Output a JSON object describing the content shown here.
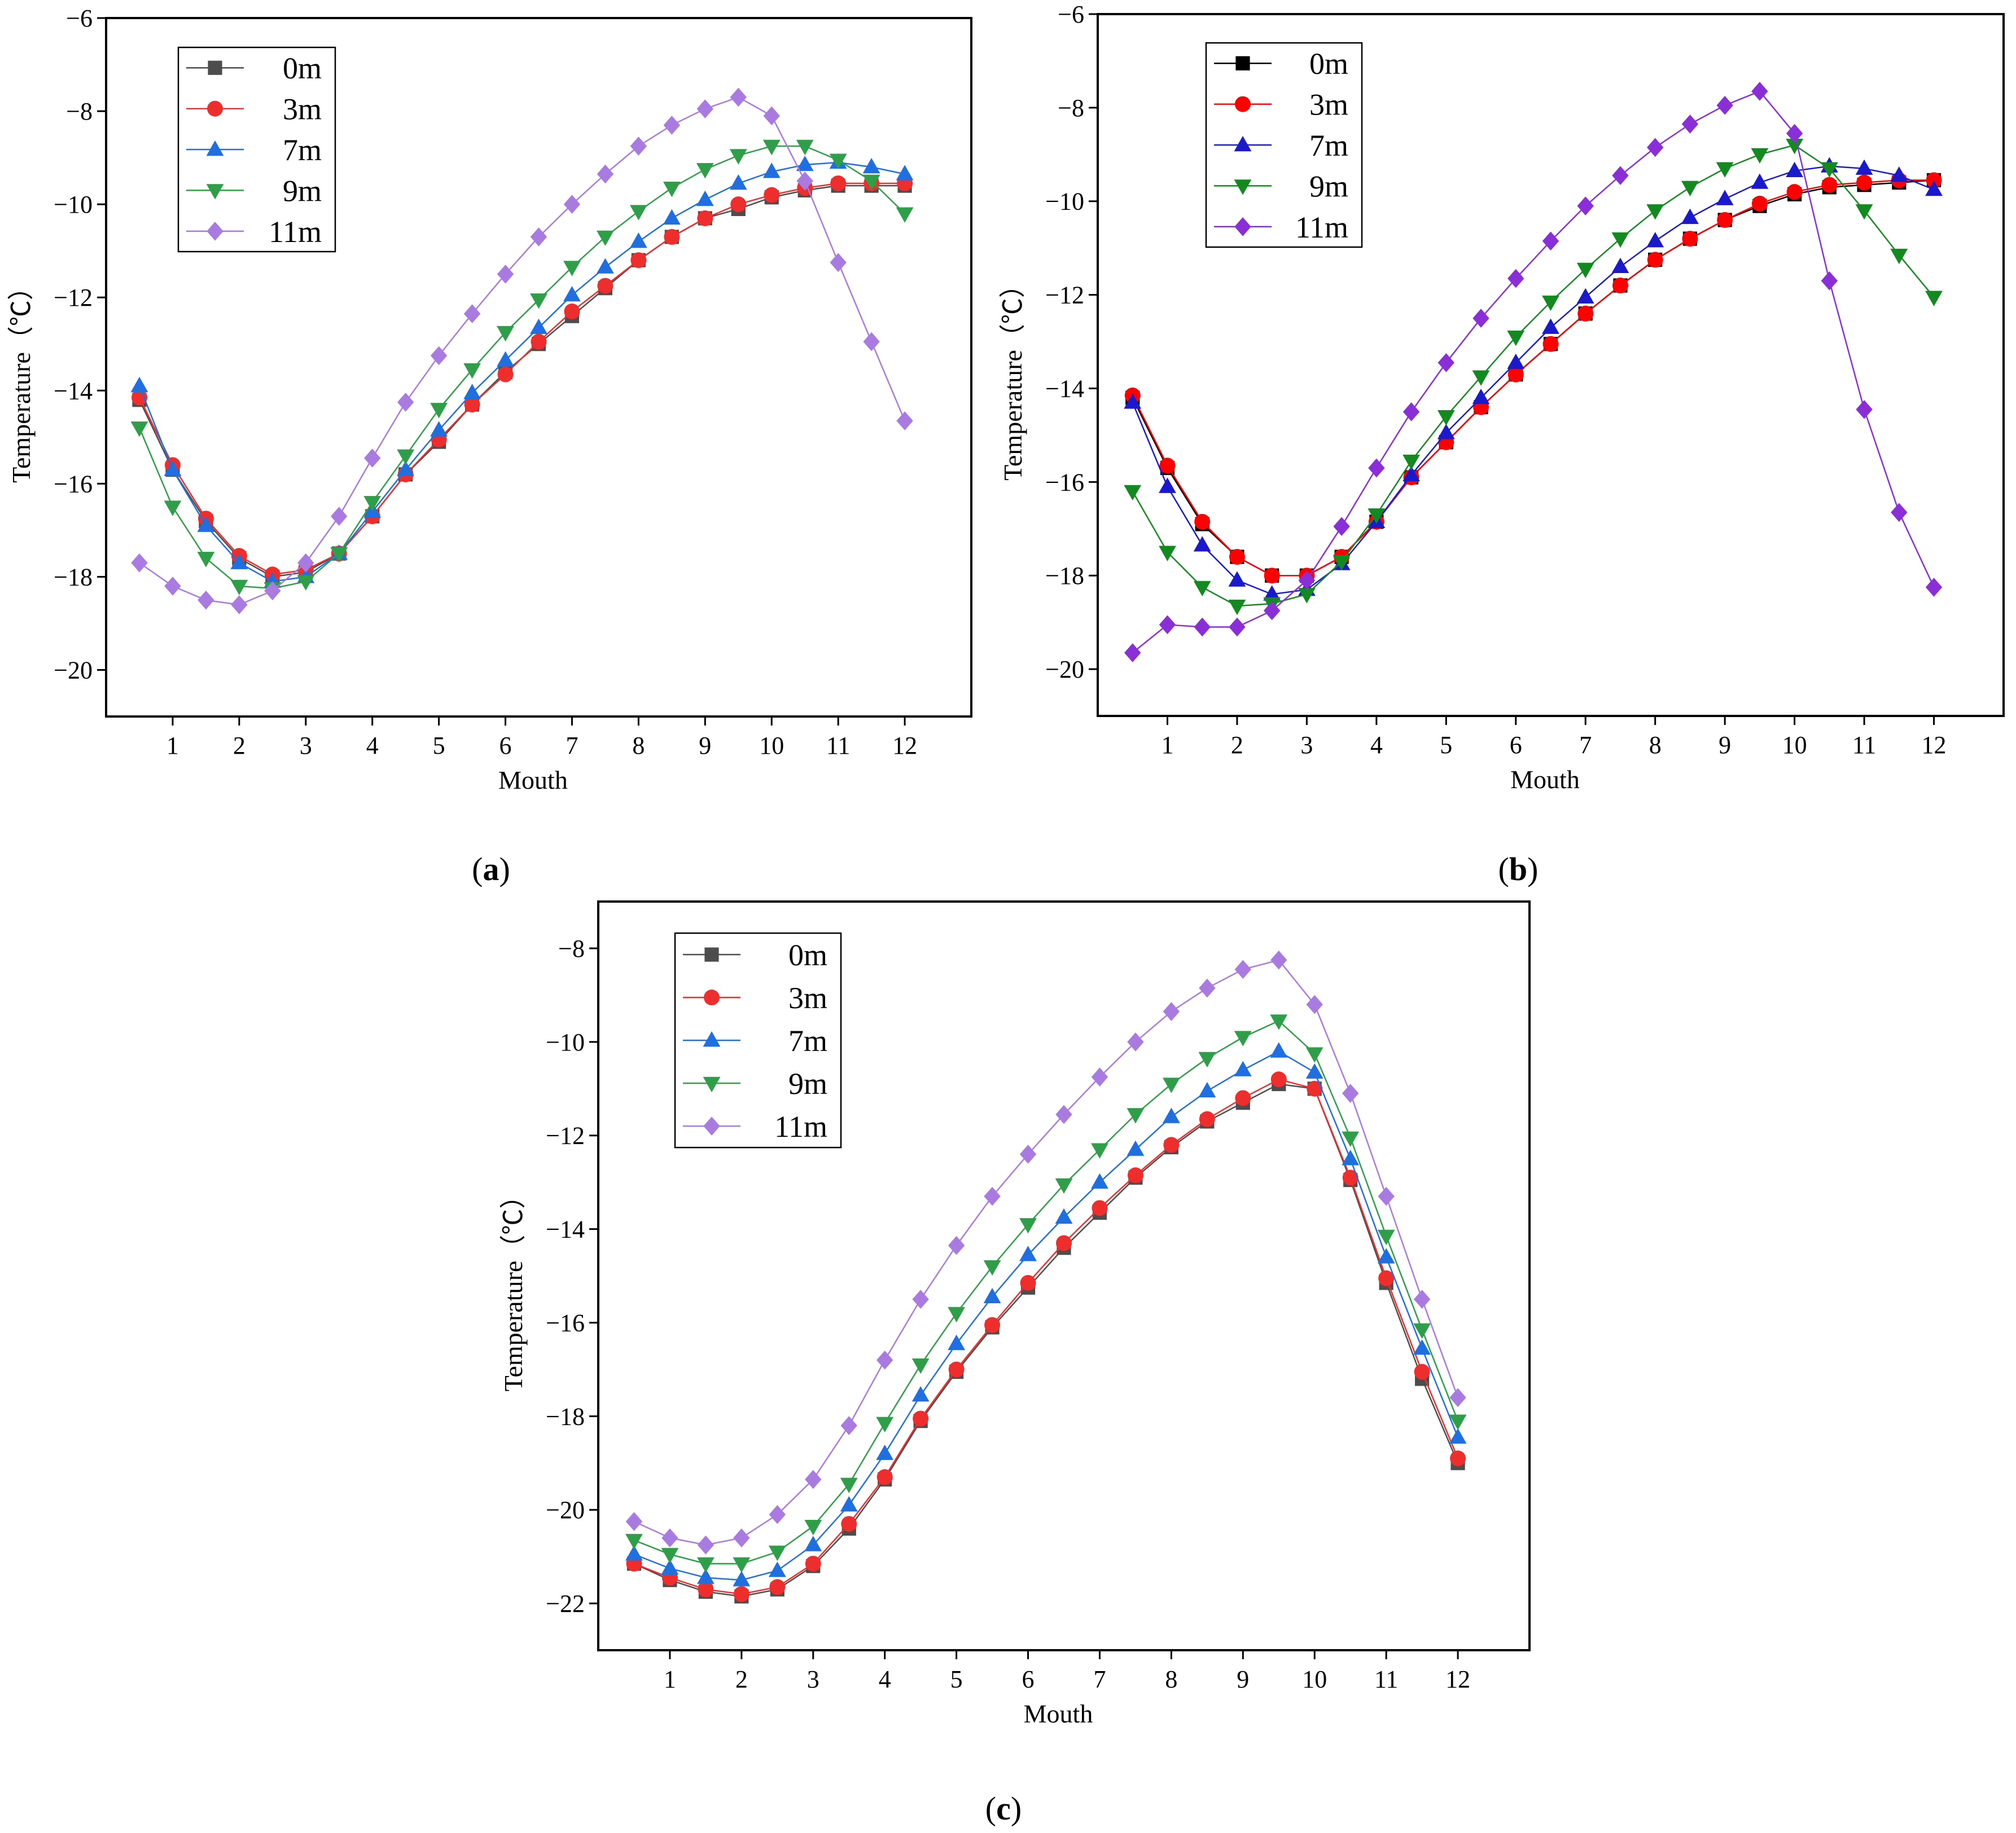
{
  "chart_data": [
    {
      "type": "line",
      "panel_label": "(a)",
      "panel_letter": "a",
      "xlabel": "Mouth",
      "ylabel": "Temperature（℃）",
      "xlim": [
        0,
        13
      ],
      "ylim": [
        -21,
        -6
      ],
      "xticks": [
        1,
        2,
        3,
        4,
        5,
        6,
        7,
        8,
        9,
        10,
        11,
        12
      ],
      "yticks": [
        -20,
        -18,
        -16,
        -14,
        -12,
        -10,
        -8,
        -6
      ],
      "x": [
        0.5,
        1,
        1.5,
        2,
        2.5,
        3,
        3.5,
        4,
        4.5,
        5,
        5.5,
        6,
        6.5,
        7,
        7.5,
        8,
        8.5,
        9,
        9.5,
        10,
        10.5,
        11,
        11.5,
        12
      ],
      "legend_position": "top-left",
      "series": [
        {
          "name": "0m",
          "marker": "square",
          "color": "#4d4d4d",
          "values": [
            -14.2,
            -15.7,
            -16.8,
            -17.6,
            -18.0,
            -17.9,
            -17.5,
            -16.7,
            -15.8,
            -15.1,
            -14.3,
            -13.6,
            -13.0,
            -12.4,
            -11.8,
            -11.2,
            -10.7,
            -10.3,
            -10.1,
            -9.85,
            -9.7,
            -9.6,
            -9.6,
            -9.6
          ]
        },
        {
          "name": "3m",
          "marker": "circle",
          "color": "#ee2d2d",
          "values": [
            -14.15,
            -15.6,
            -16.75,
            -17.55,
            -17.95,
            -17.85,
            -17.5,
            -16.7,
            -15.8,
            -15.05,
            -14.3,
            -13.65,
            -12.95,
            -12.3,
            -11.75,
            -11.2,
            -10.7,
            -10.3,
            -10.0,
            -9.8,
            -9.65,
            -9.55,
            -9.55,
            -9.55
          ]
        },
        {
          "name": "7m",
          "marker": "triangle-up",
          "color": "#1f6fe0",
          "values": [
            -13.9,
            -15.7,
            -16.9,
            -17.7,
            -18.1,
            -18.0,
            -17.5,
            -16.6,
            -15.7,
            -14.85,
            -14.05,
            -13.35,
            -12.65,
            -11.95,
            -11.35,
            -10.8,
            -10.3,
            -9.9,
            -9.55,
            -9.3,
            -9.15,
            -9.1,
            -9.2,
            -9.35
          ]
        },
        {
          "name": "9m",
          "marker": "triangle-down",
          "color": "#2e9e48",
          "values": [
            -14.8,
            -16.5,
            -17.6,
            -18.2,
            -18.25,
            -18.1,
            -17.5,
            -16.4,
            -15.4,
            -14.4,
            -13.55,
            -12.75,
            -12.05,
            -11.35,
            -10.7,
            -10.15,
            -9.65,
            -9.25,
            -8.95,
            -8.75,
            -8.75,
            -9.05,
            -9.5,
            -10.2
          ]
        },
        {
          "name": "11m",
          "marker": "diamond",
          "color": "#a97be0",
          "values": [
            -17.7,
            -18.2,
            -18.5,
            -18.6,
            -18.3,
            -17.7,
            -16.7,
            -15.45,
            -14.25,
            -13.25,
            -12.35,
            -11.5,
            -10.7,
            -10.0,
            -9.35,
            -8.75,
            -8.3,
            -7.95,
            -7.7,
            -8.1,
            -9.5,
            -11.25,
            -12.95,
            -14.65
          ]
        }
      ]
    },
    {
      "type": "line",
      "panel_label": "(b)",
      "panel_letter": "b",
      "xlabel": "Mouth",
      "ylabel": "Temperature（℃）",
      "xlim": [
        0,
        13
      ],
      "ylim": [
        -21,
        -6
      ],
      "xticks": [
        1,
        2,
        3,
        4,
        5,
        6,
        7,
        8,
        9,
        10,
        11,
        12
      ],
      "yticks": [
        -20,
        -18,
        -16,
        -14,
        -12,
        -10,
        -8,
        -6
      ],
      "x": [
        0.5,
        1,
        1.5,
        2,
        2.5,
        3,
        3.5,
        4,
        4.5,
        5,
        5.5,
        6,
        6.5,
        7,
        7.5,
        8,
        8.5,
        9,
        9.5,
        10,
        10.5,
        11,
        11.5,
        12
      ],
      "legend_position": "top-left",
      "series": [
        {
          "name": "0m",
          "marker": "square",
          "color": "#000000",
          "values": [
            -14.2,
            -15.7,
            -16.9,
            -17.6,
            -18.0,
            -18.0,
            -17.6,
            -16.85,
            -15.9,
            -15.15,
            -14.4,
            -13.7,
            -13.05,
            -12.4,
            -11.8,
            -11.25,
            -10.8,
            -10.4,
            -10.1,
            -9.85,
            -9.7,
            -9.65,
            -9.6,
            -9.55
          ]
        },
        {
          "name": "3m",
          "marker": "circle",
          "color": "#ff0000",
          "values": [
            -14.15,
            -15.65,
            -16.85,
            -17.6,
            -18.0,
            -18.0,
            -17.6,
            -16.85,
            -15.9,
            -15.15,
            -14.4,
            -13.7,
            -13.05,
            -12.4,
            -11.8,
            -11.25,
            -10.8,
            -10.4,
            -10.05,
            -9.8,
            -9.65,
            -9.6,
            -9.55,
            -9.55
          ]
        },
        {
          "name": "7m",
          "marker": "triangle-up",
          "color": "#1a1acc",
          "values": [
            -14.3,
            -16.1,
            -17.35,
            -18.1,
            -18.4,
            -18.3,
            -17.75,
            -16.85,
            -15.85,
            -14.95,
            -14.2,
            -13.45,
            -12.7,
            -12.05,
            -11.4,
            -10.85,
            -10.35,
            -9.95,
            -9.6,
            -9.35,
            -9.25,
            -9.3,
            -9.45,
            -9.75
          ]
        },
        {
          "name": "9m",
          "marker": "triangle-down",
          "color": "#138a1f",
          "values": [
            -16.2,
            -17.5,
            -18.25,
            -18.65,
            -18.6,
            -18.4,
            -17.7,
            -16.7,
            -15.55,
            -14.6,
            -13.75,
            -12.9,
            -12.15,
            -11.45,
            -10.8,
            -10.2,
            -9.7,
            -9.3,
            -9.0,
            -8.8,
            -9.3,
            -10.2,
            -11.15,
            -12.05
          ]
        },
        {
          "name": "11m",
          "marker": "diamond",
          "color": "#8a2fd8",
          "values": [
            -19.65,
            -19.05,
            -19.1,
            -19.1,
            -18.75,
            -18.1,
            -16.95,
            -15.7,
            -14.5,
            -13.45,
            -12.5,
            -11.65,
            -10.85,
            -10.1,
            -9.45,
            -8.85,
            -8.35,
            -7.95,
            -7.65,
            -8.55,
            -11.7,
            -14.45,
            -16.65,
            -18.25
          ]
        }
      ]
    },
    {
      "type": "line",
      "panel_label": "(c)",
      "panel_letter": "c",
      "xlabel": "Mouth",
      "ylabel": "Temperature（℃）",
      "xlim": [
        0,
        13
      ],
      "ylim": [
        -23,
        -7
      ],
      "xticks": [
        1,
        2,
        3,
        4,
        5,
        6,
        7,
        8,
        9,
        10,
        11,
        12
      ],
      "yticks": [
        -22,
        -20,
        -18,
        -16,
        -14,
        -12,
        -10,
        -8
      ],
      "x": [
        0.5,
        1,
        1.5,
        2,
        2.5,
        3,
        3.5,
        4,
        4.5,
        5,
        5.5,
        6,
        6.5,
        7,
        7.5,
        8,
        8.5,
        9,
        9.5,
        10,
        10.5,
        11,
        11.5,
        12
      ],
      "legend_position": "top-left",
      "series": [
        {
          "name": "0m",
          "marker": "square",
          "color": "#4d4d4d",
          "values": [
            -21.15,
            -21.5,
            -21.75,
            -21.85,
            -21.7,
            -21.2,
            -20.4,
            -19.35,
            -18.1,
            -17.05,
            -16.1,
            -15.25,
            -14.4,
            -13.65,
            -12.9,
            -12.25,
            -11.7,
            -11.3,
            -10.9,
            -11.0,
            -12.95,
            -15.15,
            -17.2,
            -19.0
          ]
        },
        {
          "name": "3m",
          "marker": "circle",
          "color": "#ee2d2d",
          "values": [
            -21.15,
            -21.45,
            -21.7,
            -21.8,
            -21.65,
            -21.15,
            -20.3,
            -19.3,
            -18.05,
            -17.0,
            -16.05,
            -15.15,
            -14.3,
            -13.55,
            -12.85,
            -12.2,
            -11.65,
            -11.2,
            -10.8,
            -11.0,
            -12.9,
            -15.05,
            -17.05,
            -18.9
          ]
        },
        {
          "name": "7m",
          "marker": "triangle-up",
          "color": "#1f6fe0",
          "values": [
            -20.95,
            -21.25,
            -21.45,
            -21.5,
            -21.3,
            -20.75,
            -19.9,
            -18.8,
            -17.55,
            -16.45,
            -15.45,
            -14.55,
            -13.75,
            -13.0,
            -12.3,
            -11.6,
            -11.05,
            -10.6,
            -10.2,
            -10.65,
            -12.5,
            -14.6,
            -16.55,
            -18.45
          ]
        },
        {
          "name": "9m",
          "marker": "triangle-down",
          "color": "#2e9e48",
          "values": [
            -20.65,
            -20.95,
            -21.15,
            -21.15,
            -20.9,
            -20.35,
            -19.45,
            -18.15,
            -16.9,
            -15.8,
            -14.8,
            -13.9,
            -13.05,
            -12.3,
            -11.55,
            -10.9,
            -10.35,
            -9.9,
            -9.55,
            -10.25,
            -12.05,
            -14.15,
            -16.15,
            -18.1
          ]
        },
        {
          "name": "11m",
          "marker": "diamond",
          "color": "#a97be0",
          "values": [
            -20.25,
            -20.6,
            -20.75,
            -20.6,
            -20.1,
            -19.35,
            -18.2,
            -16.8,
            -15.5,
            -14.35,
            -13.3,
            -12.4,
            -11.55,
            -10.75,
            -10.0,
            -9.35,
            -8.85,
            -8.45,
            -8.25,
            -9.2,
            -11.1,
            -13.3,
            -15.5,
            -17.6
          ]
        }
      ]
    }
  ]
}
